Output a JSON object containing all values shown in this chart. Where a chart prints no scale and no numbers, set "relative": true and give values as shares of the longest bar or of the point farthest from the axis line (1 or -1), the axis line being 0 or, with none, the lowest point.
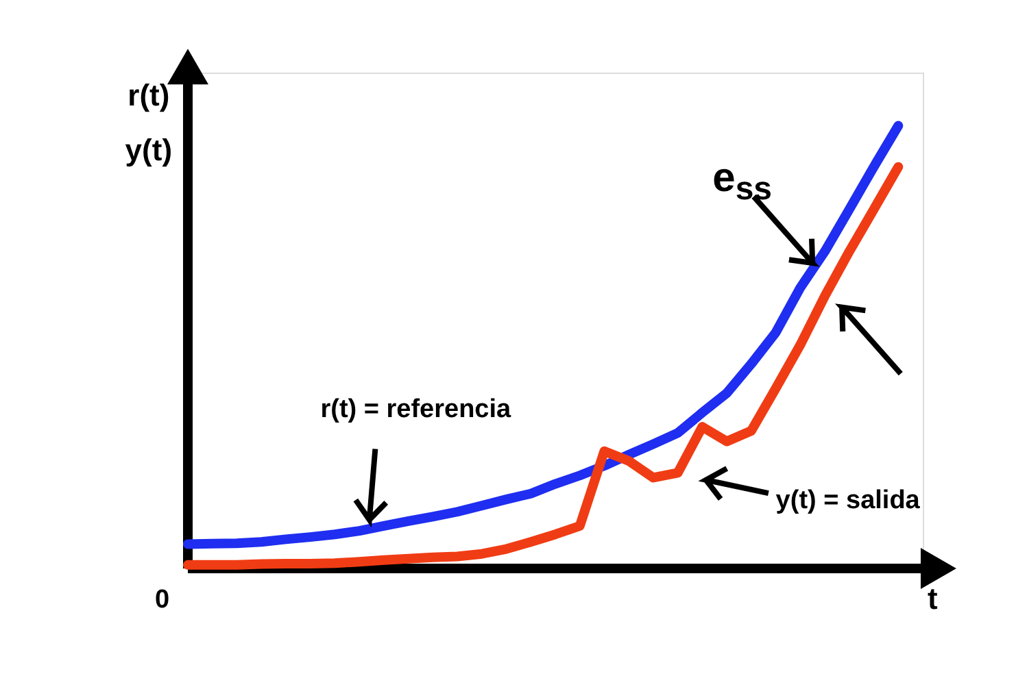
{
  "chart_data": {
    "type": "line",
    "relative": true,
    "xlabel": "t",
    "ylabel": "r(t)\ny(t)",
    "grid": false,
    "line_style": "solid",
    "categories": [
      null,
      null,
      null,
      null,
      null,
      null,
      null,
      null,
      null,
      null,
      null,
      null,
      null,
      null,
      null,
      null,
      null,
      null,
      null,
      null,
      null,
      null,
      null,
      null,
      null,
      null,
      null,
      null,
      null,
      null
    ],
    "annotations": [
      "r(t) = referencia",
      "y(t) = salida",
      "e$_{ss}$",
      "0"
    ],
    "series": [
      {
        "color": "#1f2ef0",
        "values": [
          0.055,
          0.056,
          0.057,
          0.06,
          0.066,
          0.071,
          0.077,
          0.085,
          0.096,
          0.107,
          0.117,
          0.128,
          0.142,
          0.156,
          0.169,
          0.191,
          0.21,
          0.232,
          0.257,
          0.281,
          0.306,
          0.352,
          0.396,
          0.462,
          0.533,
          0.634,
          0.716,
          0.811,
          0.907,
          1.0
        ]
      },
      {
        "color": "#f03c14",
        "values": [
          0.008,
          0.008,
          0.008,
          0.01,
          0.011,
          0.011,
          0.012,
          0.015,
          0.019,
          0.022,
          0.025,
          0.027,
          0.033,
          0.044,
          0.06,
          0.077,
          0.096,
          0.265,
          0.243,
          0.205,
          0.216,
          0.32,
          0.287,
          0.311,
          0.407,
          0.505,
          0.615,
          0.716,
          0.811,
          0.907
        ]
      }
    ]
  }
}
